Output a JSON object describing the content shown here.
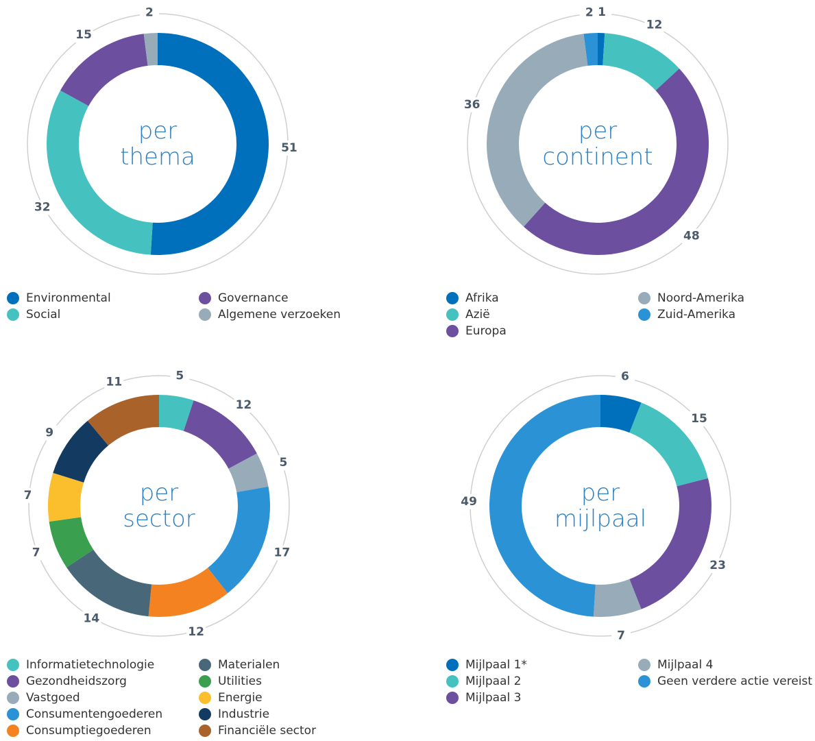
{
  "chart_data": [
    {
      "type": "donut",
      "title": "per thema",
      "categories": [
        "Environmental",
        "Social",
        "Governance",
        "Algemene verzoeken"
      ],
      "values": [
        51,
        32,
        15,
        2
      ],
      "colors": [
        "#0070bc",
        "#45c2c0",
        "#6c4f9e",
        "#97abb8"
      ]
    },
    {
      "type": "donut",
      "title": "per continent",
      "categories": [
        "Afrika",
        "Azië",
        "Europa",
        "Noord-Amerika",
        "Zuid-Amerika"
      ],
      "values": [
        1,
        12,
        48,
        36,
        2
      ],
      "colors": [
        "#0070bc",
        "#45c2c0",
        "#6c4f9e",
        "#97abb8",
        "#2b93d5"
      ]
    },
    {
      "type": "donut",
      "title": "per sector",
      "categories": [
        "Informatietechnologie",
        "Gezondheidszorg",
        "Vastgoed",
        "Consumentengoederen",
        "Consumptiegoederen",
        "Materialen",
        "Utilities",
        "Energie",
        "Industrie",
        "Financiële sector"
      ],
      "values": [
        5,
        12,
        5,
        17,
        12,
        14,
        7,
        7,
        9,
        11
      ],
      "colors": [
        "#45c2c0",
        "#6c4f9e",
        "#97abb8",
        "#2b93d5",
        "#f58220",
        "#486879",
        "#3a9f4f",
        "#fbbf2e",
        "#133b62",
        "#a8622a"
      ]
    },
    {
      "type": "donut",
      "title": "per mijlpaal",
      "categories": [
        "Mijlpaal 1*",
        "Mijlpaal 2",
        "Mijlpaal 3",
        "Mijlpaal 4",
        "Geen verdere actie vereist"
      ],
      "values": [
        6,
        15,
        23,
        7,
        49
      ],
      "colors": [
        "#0070bc",
        "#45c2c0",
        "#6c4f9e",
        "#97abb8",
        "#2b93d5"
      ]
    }
  ]
}
